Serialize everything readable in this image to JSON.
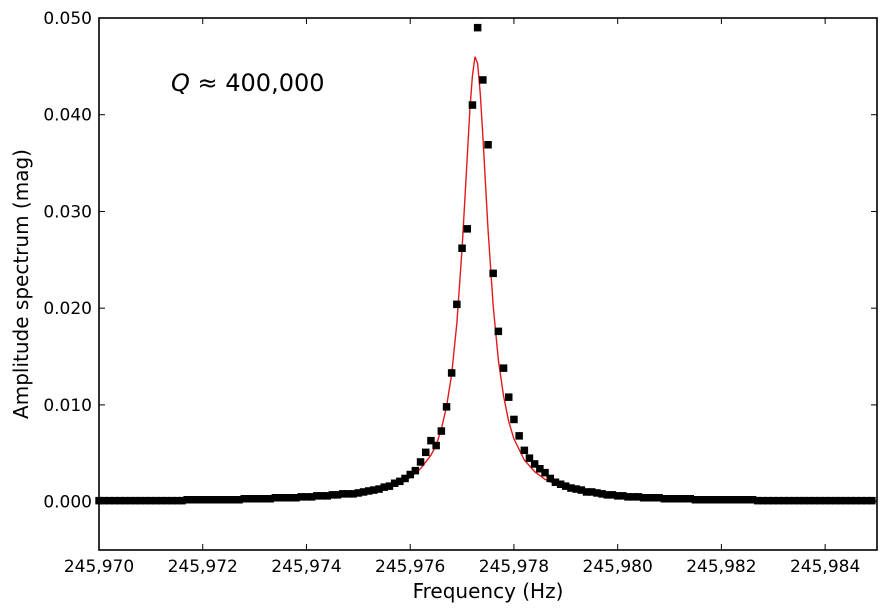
{
  "chart_data": {
    "type": "scatter",
    "xlabel": "Frequency (Hz)",
    "ylabel": "Amplitude spectrum (mag)",
    "xlim": [
      245970,
      245985
    ],
    "ylim": [
      -0.005,
      0.05
    ],
    "x_ticks": [
      245970,
      245972,
      245974,
      245976,
      245978,
      245980,
      245982,
      245984
    ],
    "x_tick_labels": [
      "245,970",
      "245,972",
      "245,974",
      "245,976",
      "245,978",
      "245,980",
      "245,982",
      "245,984"
    ],
    "y_ticks": [
      0.0,
      0.01,
      0.02,
      0.03,
      0.04,
      0.05
    ],
    "y_tick_labels": [
      "0.000",
      "0.010",
      "0.020",
      "0.030",
      "0.040",
      "0.050"
    ],
    "annotation": {
      "symbol": "Q",
      "text": " ≈ 400,000"
    },
    "grid": false,
    "legend": "none",
    "colors": {
      "fit": "#e31a1c",
      "points": "#000000"
    },
    "series": [
      {
        "kind": "points",
        "marker": "square",
        "x": [
          245970.0,
          245970.1,
          245970.2,
          245970.3,
          245970.4,
          245970.5,
          245970.6,
          245970.7,
          245970.8,
          245970.9,
          245971.0,
          245971.1,
          245971.2,
          245971.3,
          245971.4,
          245971.5,
          245971.6,
          245971.7,
          245971.8,
          245971.9,
          245972.0,
          245972.1,
          245972.2,
          245972.3,
          245972.4,
          245972.5,
          245972.6,
          245972.7,
          245972.8,
          245972.9,
          245973.0,
          245973.1,
          245973.2,
          245973.3,
          245973.4,
          245973.5,
          245973.6,
          245973.7,
          245973.8,
          245973.9,
          245974.0,
          245974.1,
          245974.2,
          245974.3,
          245974.4,
          245974.5,
          245974.6,
          245974.7,
          245974.8,
          245974.9,
          245975.0,
          245975.1,
          245975.2,
          245975.3,
          245975.4,
          245975.5,
          245975.6,
          245975.7,
          245975.8,
          245975.9,
          245976.0,
          245976.1,
          245976.2,
          245976.3,
          245976.4,
          245976.5,
          245976.6,
          245976.7,
          245976.8,
          245976.9,
          245977.0,
          245977.1,
          245977.2,
          245977.3,
          245977.4,
          245977.5,
          245977.6,
          245977.7,
          245977.8,
          245977.9,
          245978.0,
          245978.1,
          245978.2,
          245978.3,
          245978.4,
          245978.5,
          245978.6,
          245978.7,
          245978.8,
          245978.9,
          245979.0,
          245979.1,
          245979.2,
          245979.3,
          245979.4,
          245979.5,
          245979.6,
          245979.7,
          245979.8,
          245979.9,
          245980.0,
          245980.1,
          245980.2,
          245980.3,
          245980.4,
          245980.5,
          245980.6,
          245980.7,
          245980.8,
          245980.9,
          245981.0,
          245981.1,
          245981.2,
          245981.3,
          245981.4,
          245981.5,
          245981.6,
          245981.7,
          245981.8,
          245981.9,
          245982.0,
          245982.1,
          245982.2,
          245982.3,
          245982.4,
          245982.5,
          245982.6,
          245982.7,
          245982.8,
          245982.9,
          245983.0,
          245983.1,
          245983.2,
          245983.3,
          245983.4,
          245983.5,
          245983.6,
          245983.7,
          245983.8,
          245983.9,
          245984.0,
          245984.1,
          245984.2,
          245984.3,
          245984.4,
          245984.5,
          245984.6,
          245984.7,
          245984.8,
          245984.9
        ],
        "y": [
          0.0001,
          0.0001,
          0.0001,
          0.0001,
          0.0001,
          0.0001,
          0.0001,
          0.0001,
          0.0001,
          0.0001,
          0.0001,
          0.0001,
          0.0001,
          0.0001,
          0.0001,
          0.0001,
          0.0001,
          0.0002,
          0.0002,
          0.0002,
          0.0002,
          0.0002,
          0.0002,
          0.0002,
          0.0002,
          0.0002,
          0.0002,
          0.0002,
          0.0003,
          0.0003,
          0.0003,
          0.0003,
          0.0003,
          0.0003,
          0.0004,
          0.0004,
          0.0004,
          0.0004,
          0.0004,
          0.0005,
          0.0005,
          0.0005,
          0.0006,
          0.0006,
          0.0006,
          0.0007,
          0.0007,
          0.0008,
          0.0008,
          0.0008,
          0.0009,
          0.001,
          0.0011,
          0.0012,
          0.0013,
          0.0015,
          0.0016,
          0.0019,
          0.0021,
          0.0024,
          0.0028,
          0.0032,
          0.0041,
          0.0051,
          0.0063,
          0.0058,
          0.0073,
          0.0098,
          0.0133,
          0.0204,
          0.0262,
          0.0282,
          0.041,
          0.049,
          0.0436,
          0.0369,
          0.0236,
          0.0176,
          0.0138,
          0.0108,
          0.0085,
          0.0068,
          0.0053,
          0.0045,
          0.0039,
          0.0034,
          0.003,
          0.0024,
          0.002,
          0.0018,
          0.0016,
          0.0014,
          0.0013,
          0.0012,
          0.001,
          0.001,
          0.0009,
          0.0008,
          0.0007,
          0.0007,
          0.0006,
          0.0006,
          0.0005,
          0.0005,
          0.0005,
          0.0004,
          0.0004,
          0.0004,
          0.0004,
          0.0003,
          0.0003,
          0.0003,
          0.0003,
          0.0003,
          0.0003,
          0.0002,
          0.0002,
          0.0002,
          0.0002,
          0.0002,
          0.0002,
          0.0002,
          0.0002,
          0.0002,
          0.0002,
          0.0002,
          0.0002,
          0.0001,
          0.0001,
          0.0001,
          0.0001,
          0.0001,
          0.0001,
          0.0001,
          0.0001,
          0.0001,
          0.0001,
          0.0001,
          0.0001,
          0.0001,
          0.0001,
          0.0001,
          0.0001,
          0.0001,
          0.0001,
          0.0001,
          0.0001,
          0.0001,
          0.0001,
          0.0001
        ]
      },
      {
        "kind": "fit-line",
        "x": [
          245970.0,
          245971.0,
          245972.0,
          245973.0,
          245974.0,
          245974.5,
          245975.0,
          245975.5,
          245975.8,
          245976.0,
          245976.2,
          245976.4,
          245976.5,
          245976.6,
          245976.7,
          245976.8,
          245976.9,
          245977.0,
          245977.1,
          245977.15,
          245977.2,
          245977.25,
          245977.3,
          245977.35,
          245977.4,
          245977.5,
          245977.6,
          245977.7,
          245977.8,
          245977.9,
          245978.0,
          245978.2,
          245978.4,
          245978.6,
          245978.8,
          245979.0,
          245979.5,
          245980.0,
          245980.5,
          245981.0,
          245982.0,
          245983.0,
          245984.0,
          245985.0
        ],
        "y": [
          0.0001,
          0.0001,
          0.0002,
          0.0003,
          0.0005,
          0.0007,
          0.001,
          0.0014,
          0.0019,
          0.0025,
          0.0034,
          0.0048,
          0.0058,
          0.0075,
          0.0098,
          0.0132,
          0.0185,
          0.0262,
          0.0357,
          0.0404,
          0.044,
          0.046,
          0.0453,
          0.0423,
          0.0379,
          0.0282,
          0.0202,
          0.0146,
          0.0109,
          0.0083,
          0.0065,
          0.0043,
          0.0031,
          0.0023,
          0.0018,
          0.0014,
          0.0009,
          0.0006,
          0.0005,
          0.0004,
          0.0002,
          0.0002,
          0.0001,
          0.0001
        ]
      }
    ]
  }
}
